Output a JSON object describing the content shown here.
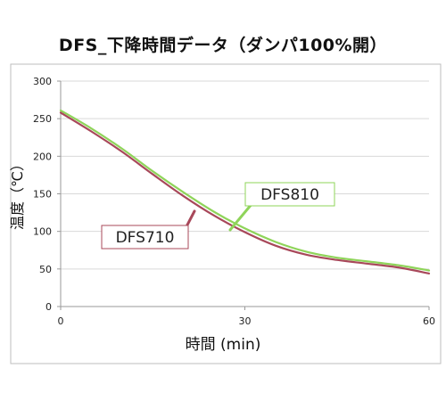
{
  "chart_data": {
    "type": "line",
    "title": "DFS_下降時間データ（ダンパ100%開）",
    "xlabel": "時間 (min)",
    "ylabel": "温度（℃）",
    "xlim": [
      0,
      60
    ],
    "ylim": [
      0,
      300
    ],
    "x_ticks": [
      "0",
      "30",
      "60"
    ],
    "y_ticks": [
      "0",
      "50",
      "100",
      "150",
      "200",
      "250",
      "300"
    ],
    "grid": "horizontal",
    "series": [
      {
        "name": "DFS810",
        "color": "#8fd45a",
        "x": [
          0,
          5,
          10,
          15,
          20,
          25,
          30,
          35,
          40,
          45,
          50,
          55,
          60
        ],
        "y": [
          261,
          237,
          210,
          180,
          152,
          126,
          104,
          86,
          73,
          65,
          60,
          55,
          48
        ]
      },
      {
        "name": "DFS710",
        "color": "#a8485a",
        "x": [
          0,
          5,
          10,
          15,
          20,
          25,
          30,
          35,
          40,
          45,
          50,
          55,
          60
        ],
        "y": [
          258,
          233,
          206,
          176,
          147,
          121,
          99,
          81,
          69,
          62,
          57,
          52,
          44
        ]
      }
    ]
  }
}
